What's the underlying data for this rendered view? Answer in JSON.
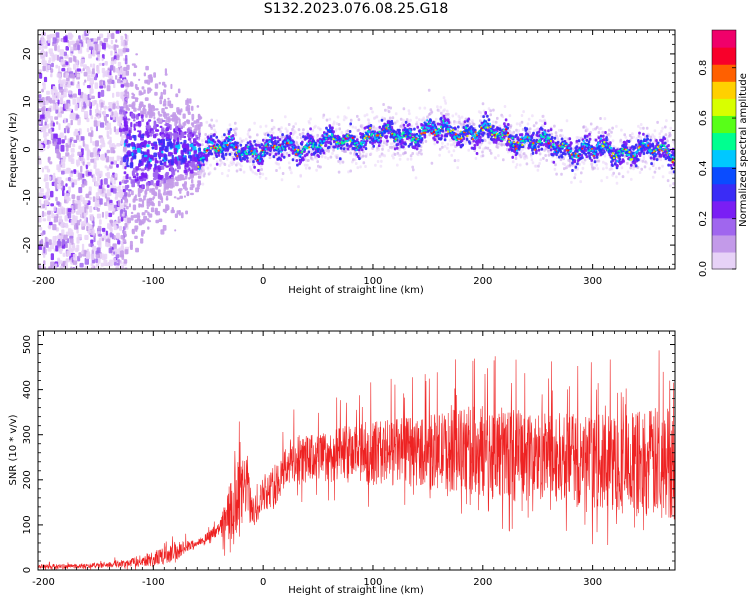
{
  "title": "S132.2023.076.08.25.G18",
  "colors": {
    "spectrogram_palette": [
      "#e7d2f7",
      "#c39ae9",
      "#a066ee",
      "#7a1ef4",
      "#3a2cf6",
      "#0a4cff",
      "#00c8ff",
      "#00ff90",
      "#58ff18",
      "#d8ff00",
      "#ffd000",
      "#ff6000",
      "#f8002a",
      "#f0006a"
    ],
    "snr_line": "#ee2222",
    "axes": "#000000"
  },
  "chart_data": [
    {
      "type": "heatmap",
      "name": "spectrogram",
      "xlabel": "Height of straight line (km)",
      "ylabel": "Frequency (Hz)",
      "xlim": [
        -205,
        375
      ],
      "ylim": [
        -25,
        25
      ],
      "xticks": [
        -200,
        -100,
        0,
        100,
        200,
        300
      ],
      "yticks": [
        -20,
        -10,
        0,
        10,
        20
      ],
      "colorbar": {
        "label": "Normalized spectral amplitude",
        "range": [
          0,
          0.95
        ],
        "ticks": [
          0.0,
          0.2,
          0.4,
          0.6,
          0.8
        ]
      },
      "signal_track": [
        {
          "x": -60,
          "y": -1
        },
        {
          "x": -50,
          "y": 0.5
        },
        {
          "x": 0,
          "y": 0
        },
        {
          "x": 50,
          "y": 1.5
        },
        {
          "x": 100,
          "y": 3
        },
        {
          "x": 150,
          "y": 4
        },
        {
          "x": 200,
          "y": 4
        },
        {
          "x": 250,
          "y": 1.5
        },
        {
          "x": 300,
          "y": 0
        },
        {
          "x": 375,
          "y": 0
        }
      ],
      "regions": [
        {
          "x_start": -205,
          "x_end": -125,
          "description": "broadband noise across full frequency range"
        },
        {
          "x_start": -125,
          "x_end": -60,
          "description": "diffuse noise near 0 Hz"
        },
        {
          "x_start": -60,
          "x_end": 375,
          "description": "coherent signal with peak amplitude ~0.9"
        }
      ]
    },
    {
      "type": "line",
      "name": "snr",
      "xlabel": "Height of straight line (km)",
      "ylabel": "SNR (10 * v/v)",
      "xlim": [
        -205,
        375
      ],
      "ylim": [
        0,
        530
      ],
      "xticks": [
        -200,
        -100,
        0,
        100,
        200,
        300
      ],
      "yticks": [
        0,
        100,
        200,
        300,
        400,
        500
      ],
      "series": [
        {
          "x": [
            -205,
            -180,
            -150,
            -125,
            -100,
            -80,
            -60,
            -40,
            -25,
            -20,
            -15,
            -10,
            0,
            10,
            20,
            25,
            50,
            100,
            150,
            200,
            250,
            300,
            350,
            375
          ],
          "y_mean": [
            8,
            8,
            10,
            15,
            25,
            40,
            60,
            90,
            140,
            160,
            200,
            120,
            170,
            180,
            230,
            240,
            250,
            260,
            265,
            265,
            250,
            240,
            235,
            240
          ],
          "y_peak": [
            20,
            20,
            22,
            35,
            60,
            95,
            75,
            120,
            370,
            330,
            360,
            200,
            250,
            280,
            340,
            360,
            370,
            420,
            440,
            500,
            480,
            470,
            510,
            530
          ]
        }
      ]
    }
  ]
}
